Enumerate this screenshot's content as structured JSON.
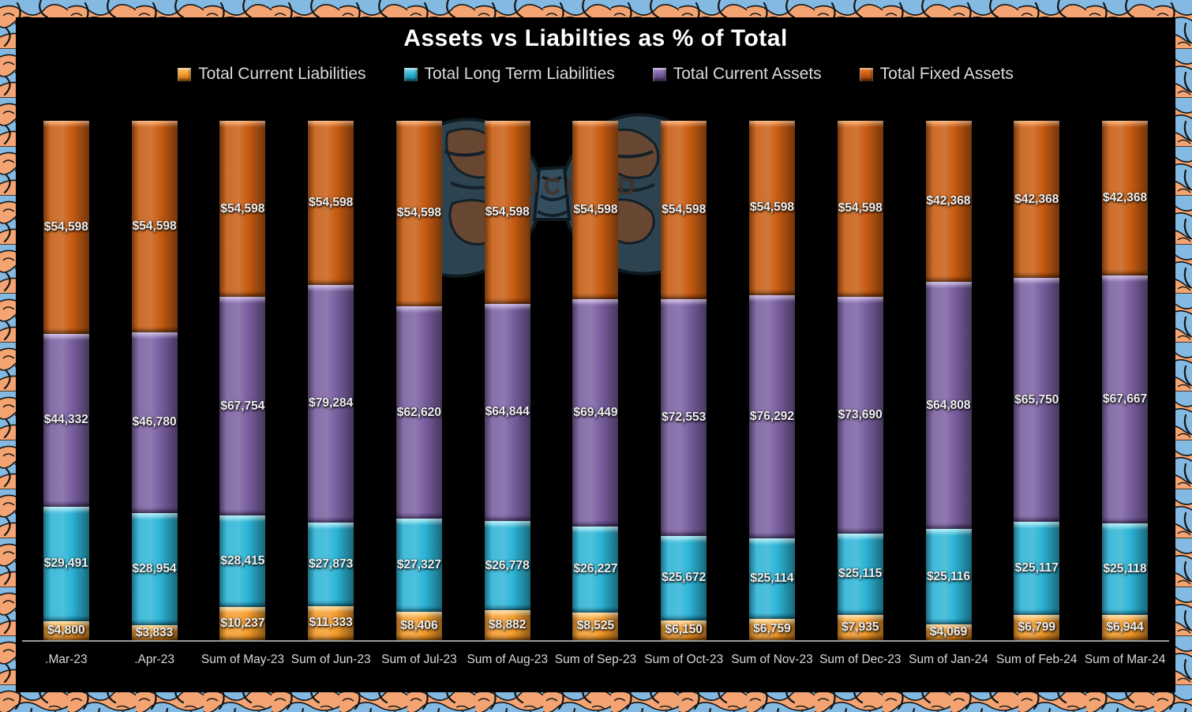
{
  "title": "Assets vs Liabilties as % of Total",
  "chart_data": {
    "type": "bar",
    "stacking": "percent",
    "orientation": "vertical",
    "title": "Assets vs Liabilties as % of Total",
    "legend_position": "top",
    "gridlines": false,
    "value_axis_visible": false,
    "data_label_format": "$#,##0",
    "categories": [
      ".Mar-23",
      ".Apr-23",
      "Sum of May-23",
      "Sum of Jun-23",
      "Sum of Jul-23",
      "Sum of Aug-23",
      "Sum of Sep-23",
      "Sum of Oct-23",
      "Sum of Nov-23",
      "Sum of Dec-23",
      "Sum of Jan-24",
      "Sum of Feb-24",
      "Sum of Mar-24"
    ],
    "series": [
      {
        "name": "Total Current Liabilities",
        "color": "#F49B2A",
        "color_light": "#FFC768",
        "color_dark": "#BF6E10",
        "values": [
          4800,
          3833,
          10237,
          11333,
          8406,
          8882,
          8525,
          6150,
          6759,
          7935,
          4069,
          6799,
          6944
        ]
      },
      {
        "name": "Total Long Term Liabilities",
        "color": "#2CB4D6",
        "color_light": "#7FE0F2",
        "color_dark": "#147F9E",
        "values": [
          29491,
          28954,
          28415,
          27873,
          27327,
          26778,
          26227,
          25672,
          25114,
          25115,
          25116,
          25117,
          25118
        ]
      },
      {
        "name": "Total Current Assets",
        "color": "#7A5FA0",
        "color_light": "#A88BD0",
        "color_dark": "#4E3A72",
        "values": [
          44332,
          46780,
          67754,
          79284,
          62620,
          64844,
          69449,
          72553,
          76292,
          73690,
          64808,
          65750,
          67667
        ]
      },
      {
        "name": "Total Fixed Assets",
        "color": "#C75C12",
        "color_light": "#F07B22",
        "color_dark": "#8C3F08",
        "values": [
          54598,
          54598,
          54598,
          54598,
          54598,
          54598,
          54598,
          54598,
          54598,
          54598,
          42368,
          42368,
          42368
        ]
      }
    ]
  },
  "watermark": {
    "visible_text": "UCKE"
  },
  "frame": {
    "pattern_blue": "#84b9e2",
    "pattern_orange": "#f3a472",
    "pattern_line": "#141414",
    "background": "#000000",
    "axis_line_color": "#9a9a9a"
  }
}
